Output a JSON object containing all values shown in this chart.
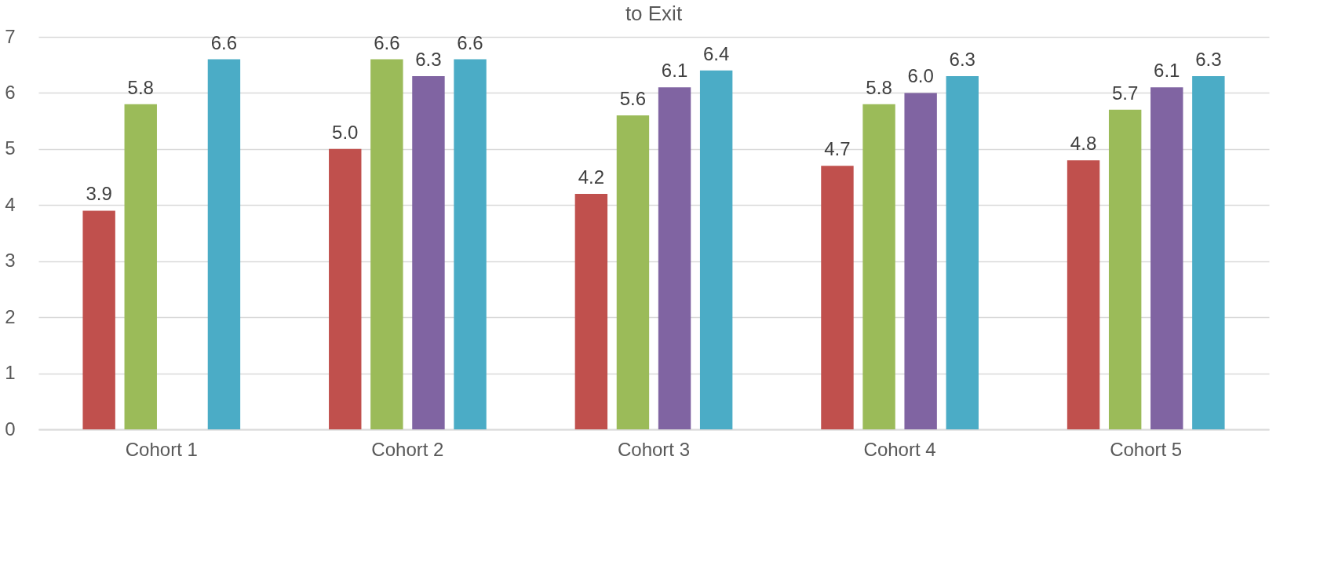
{
  "chart_data": {
    "type": "bar",
    "title": "to Exit",
    "categories": [
      "Cohort 1",
      "Cohort 2",
      "Cohort 3",
      "Cohort 4",
      "Cohort 5"
    ],
    "series": [
      {
        "color": "#c0504d",
        "values": [
          3.9,
          5.0,
          4.2,
          4.7,
          4.8
        ],
        "value_labels": [
          "3.9",
          "5.0",
          "4.2",
          "4.7",
          "4.8"
        ]
      },
      {
        "color": "#9bbb59",
        "values": [
          5.8,
          6.6,
          5.6,
          5.8,
          5.7
        ],
        "value_labels": [
          "5.8",
          "6.6",
          "5.6",
          "5.8",
          "5.7"
        ]
      },
      {
        "color": "#8064a2",
        "values": [
          null,
          6.3,
          6.1,
          6.0,
          6.1
        ],
        "value_labels": [
          null,
          "6.3",
          "6.1",
          "6.0",
          "6.1"
        ]
      },
      {
        "color": "#4bacc6",
        "values": [
          6.6,
          6.6,
          6.4,
          6.3,
          6.3
        ],
        "value_labels": [
          "6.6",
          "6.6",
          "6.4",
          "6.3",
          "6.3"
        ]
      }
    ],
    "ylim": [
      0,
      7
    ],
    "yticks": [
      0,
      1,
      2,
      3,
      4,
      5,
      6,
      7
    ],
    "grid": "y",
    "legend": false
  }
}
